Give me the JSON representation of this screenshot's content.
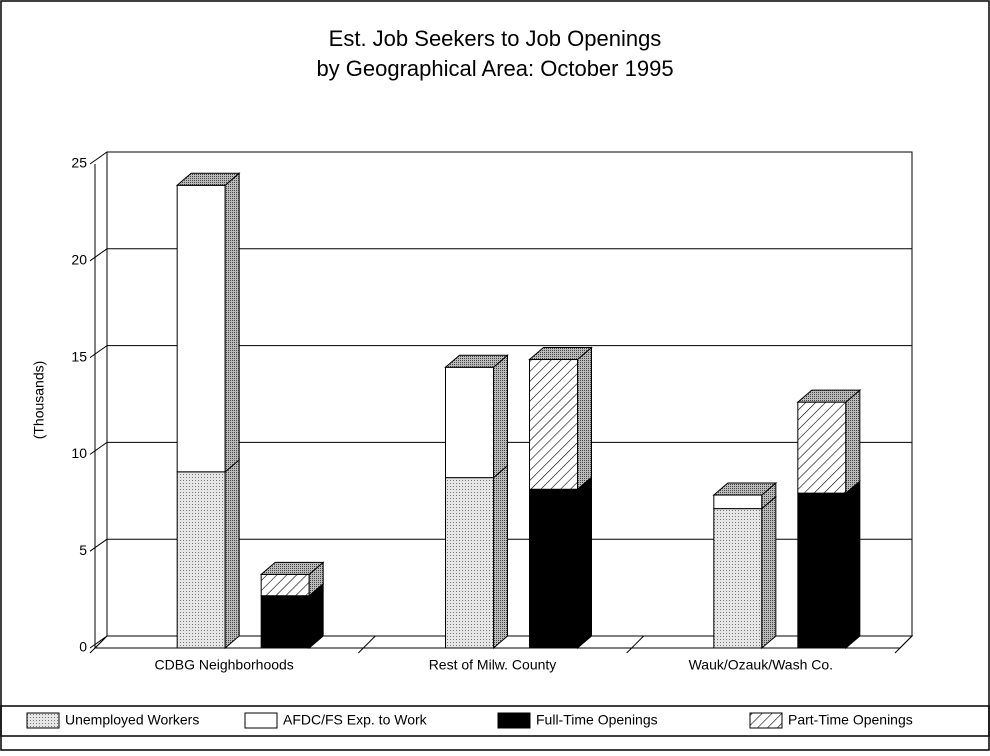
{
  "chart_data": {
    "type": "bar3d_stacked",
    "title": [
      "Est. Job Seekers to Job Openings",
      "by Geographical Area: October 1995"
    ],
    "ylabel": "(Thousands)",
    "categories": [
      "CDBG Neighborhoods",
      "Rest of Milw. County",
      "Wauk/Ozauk/Wash Co."
    ],
    "series": [
      {
        "name": "Unemployed Workers",
        "color": "#d4d4d4",
        "pattern": "dots",
        "values": [
          9.1,
          8.8,
          7.2
        ]
      },
      {
        "name": "AFDC/FS Exp. to Work",
        "color": "#ffffff",
        "values": [
          14.8,
          5.7,
          0.7
        ]
      },
      {
        "name": "Full-Time Openings",
        "color": "#000000",
        "values": [
          2.7,
          8.2,
          8.0
        ]
      },
      {
        "name": "Part-Time Openings",
        "color": "#ffffff",
        "pattern": "hatch",
        "values": [
          1.1,
          6.7,
          4.7
        ]
      }
    ],
    "ylim": [
      0,
      25
    ],
    "yticks": [
      0,
      5,
      10,
      15,
      20,
      25
    ],
    "grid": true,
    "legend": "bottom"
  }
}
